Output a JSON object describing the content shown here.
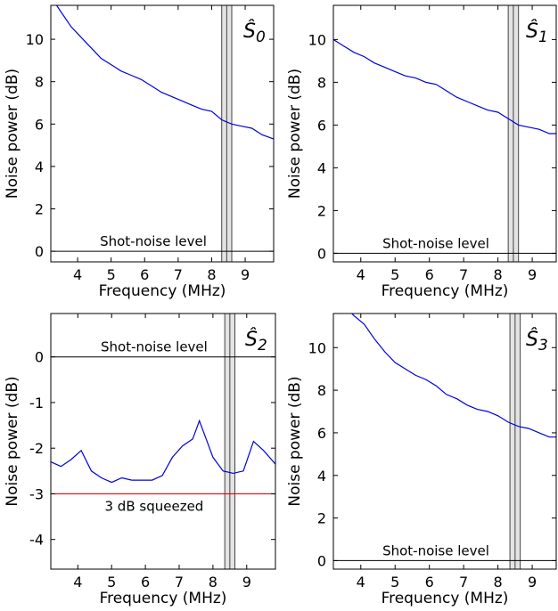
{
  "chart_data": [
    {
      "type": "line",
      "panel_label": "Ŝ0",
      "xlabel": "Frequency (MHz)",
      "ylabel": "Noise power (dB)",
      "xlim": [
        3.2,
        9.85
      ],
      "ylim": [
        -0.5,
        11.6
      ],
      "xticks": [
        "4",
        "5",
        "6",
        "7",
        "8",
        "9"
      ],
      "yticks": [
        "0",
        "2",
        "4",
        "6",
        "8",
        "10"
      ],
      "reference_line": {
        "label": "Shot-noise level",
        "value": 0,
        "color": "#000000"
      },
      "highlight_band": [
        8.3,
        8.6
      ],
      "series": [
        {
          "color": "#0000dd",
          "x": [
            3.2,
            3.5,
            3.8,
            4.1,
            4.4,
            4.7,
            5.0,
            5.3,
            5.6,
            5.9,
            6.2,
            6.5,
            6.8,
            7.1,
            7.4,
            7.7,
            8.0,
            8.3,
            8.6,
            8.9,
            9.2,
            9.5,
            9.85
          ],
          "y": [
            12.0,
            11.3,
            10.6,
            10.1,
            9.6,
            9.1,
            8.8,
            8.5,
            8.3,
            8.1,
            7.8,
            7.5,
            7.3,
            7.1,
            6.9,
            6.7,
            6.6,
            6.2,
            6.0,
            5.9,
            5.8,
            5.5,
            5.3
          ]
        }
      ]
    },
    {
      "type": "line",
      "panel_label": "Ŝ1",
      "xlabel": "Frequency (MHz)",
      "ylabel": "Noise power (dB)",
      "xlim": [
        3.2,
        9.7
      ],
      "ylim": [
        -0.4,
        11.6
      ],
      "xticks": [
        "4",
        "5",
        "6",
        "7",
        "8",
        "9"
      ],
      "yticks": [
        "0",
        "2",
        "4",
        "6",
        "8",
        "10"
      ],
      "reference_line": {
        "label": "Shot-noise level",
        "value": 0,
        "color": "#000000"
      },
      "highlight_band": [
        8.3,
        8.6
      ],
      "series": [
        {
          "color": "#0000dd",
          "x": [
            3.2,
            3.5,
            3.8,
            4.1,
            4.4,
            4.7,
            5.0,
            5.3,
            5.6,
            5.9,
            6.2,
            6.5,
            6.8,
            7.1,
            7.4,
            7.7,
            8.0,
            8.3,
            8.6,
            8.9,
            9.2,
            9.5,
            9.7
          ],
          "y": [
            10.0,
            9.7,
            9.4,
            9.2,
            8.9,
            8.7,
            8.5,
            8.3,
            8.2,
            8.0,
            7.9,
            7.6,
            7.3,
            7.1,
            6.9,
            6.7,
            6.6,
            6.3,
            6.0,
            5.9,
            5.8,
            5.6,
            5.6
          ]
        }
      ]
    },
    {
      "type": "line",
      "panel_label": "Ŝ2",
      "xlabel": "Frequency (MHz)",
      "ylabel": "Noise power (dB)",
      "xlim": [
        3.2,
        9.85
      ],
      "ylim": [
        -4.65,
        0.95
      ],
      "xticks": [
        "4",
        "5",
        "6",
        "7",
        "8",
        "9"
      ],
      "yticks": [
        "0",
        "-1",
        "-2",
        "-3",
        "-4"
      ],
      "reference_line": {
        "label": "Shot-noise level",
        "value": 0,
        "color": "#000000"
      },
      "squeezing_line": {
        "label": "3 dB squeezed",
        "value": -3,
        "color": "#ee0000"
      },
      "highlight_band": [
        8.35,
        8.65
      ],
      "series": [
        {
          "color": "#0000dd",
          "x": [
            3.2,
            3.5,
            3.8,
            4.1,
            4.4,
            4.7,
            5.0,
            5.3,
            5.6,
            5.9,
            6.2,
            6.5,
            6.8,
            7.1,
            7.4,
            7.6,
            7.8,
            8.0,
            8.3,
            8.6,
            8.9,
            9.2,
            9.5,
            9.85
          ],
          "y": [
            -2.3,
            -2.4,
            -2.25,
            -2.05,
            -2.5,
            -2.65,
            -2.75,
            -2.65,
            -2.7,
            -2.7,
            -2.7,
            -2.6,
            -2.2,
            -1.95,
            -1.8,
            -1.4,
            -1.8,
            -2.2,
            -2.5,
            -2.55,
            -2.5,
            -1.85,
            -2.05,
            -2.35
          ]
        }
      ]
    },
    {
      "type": "line",
      "panel_label": "Ŝ3",
      "xlabel": "Frequency (MHz)",
      "ylabel": "Noise power (dB)",
      "xlim": [
        3.2,
        9.7
      ],
      "ylim": [
        -0.4,
        11.6
      ],
      "xticks": [
        "4",
        "5",
        "6",
        "7",
        "8",
        "9"
      ],
      "yticks": [
        "0",
        "2",
        "4",
        "6",
        "8",
        "10"
      ],
      "reference_line": {
        "label": "Shot-noise level",
        "value": 0,
        "color": "#000000"
      },
      "highlight_band": [
        8.35,
        8.65
      ],
      "series": [
        {
          "color": "#0000dd",
          "x": [
            3.2,
            3.5,
            3.8,
            4.1,
            4.4,
            4.7,
            5.0,
            5.3,
            5.6,
            5.9,
            6.2,
            6.5,
            6.8,
            7.1,
            7.4,
            7.7,
            8.0,
            8.3,
            8.6,
            8.9,
            9.2,
            9.5,
            9.7
          ],
          "y": [
            12.5,
            12.0,
            11.5,
            11.1,
            10.4,
            9.8,
            9.3,
            9.0,
            8.7,
            8.5,
            8.2,
            7.8,
            7.6,
            7.3,
            7.1,
            7.0,
            6.8,
            6.5,
            6.3,
            6.2,
            6.0,
            5.8,
            5.8
          ]
        }
      ]
    }
  ]
}
